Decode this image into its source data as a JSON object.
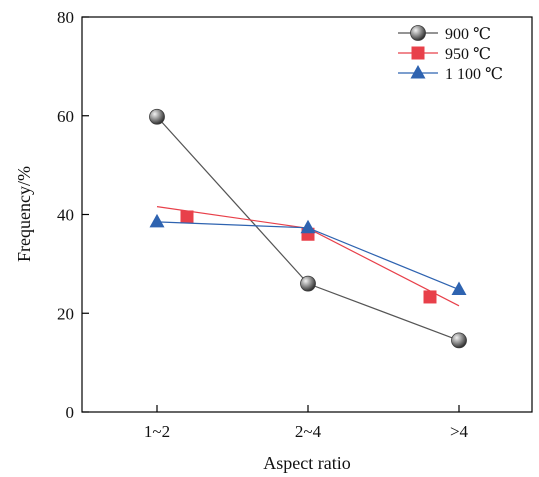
{
  "chart_data": {
    "type": "line",
    "xlabel": "Aspect ratio",
    "ylabel": "Frequency/%",
    "categories": [
      "1~2",
      "2~4",
      ">4"
    ],
    "ylim": [
      0,
      80
    ],
    "yticks": [
      "0",
      "20",
      "40",
      "60",
      "80"
    ],
    "grid": false,
    "legend_position": "top-right",
    "series": [
      {
        "name": "900 ℃",
        "marker": "circle",
        "color": "#7a7a7a",
        "points": [
          {
            "x": "1~2",
            "y": 59.8
          },
          {
            "x": "2~4",
            "y": 26.0
          },
          {
            "x": ">4",
            "y": 14.5
          }
        ]
      },
      {
        "name": "950 ℃",
        "marker": "square",
        "color": "#e8404a",
        "points": [
          {
            "x": "1~2",
            "y": 39.5
          },
          {
            "x": "2~4",
            "y": 36.0
          },
          {
            "x": ">4",
            "y": 23.3
          }
        ]
      },
      {
        "name": "1 100 ℃",
        "marker": "triangle",
        "color": "#2e63b0",
        "points": [
          {
            "x": "1~2",
            "y": 38.5
          },
          {
            "x": "2~4",
            "y": 37.3
          },
          {
            "x": ">4",
            "y": 24.8
          }
        ]
      }
    ]
  }
}
